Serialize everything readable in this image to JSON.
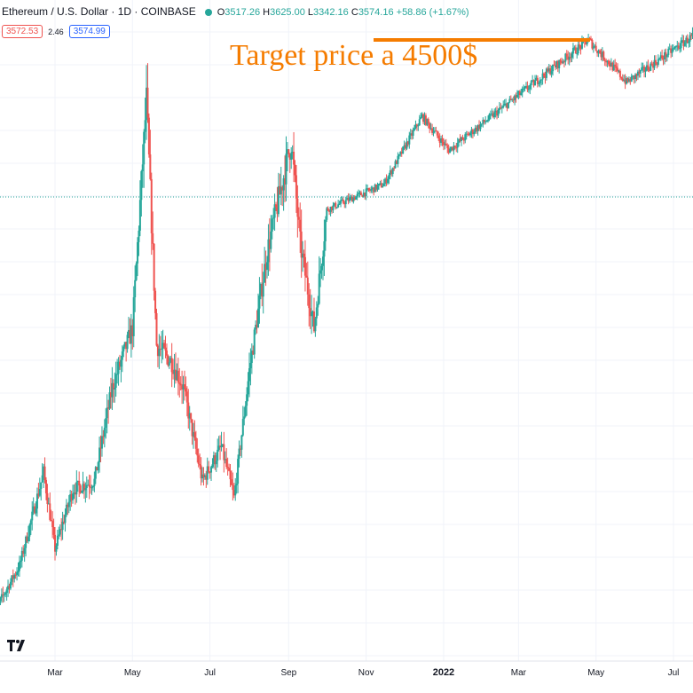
{
  "header": {
    "symbol": "Ethereum / U.S. Dollar · 1D · COINBASE",
    "open_key": "O",
    "open": "3517.26",
    "high_key": "H",
    "high": "3625.00",
    "low_key": "L",
    "low": "3342.16",
    "close_key": "C",
    "close": "3574.16",
    "change": "+58.86 (+1.67%)",
    "bid": "3572.53",
    "spread": "2.46",
    "ask": "3574.99"
  },
  "annotation": "Target price a 4500$",
  "colors": {
    "up": "#26a69a",
    "down": "#ef5350",
    "annotation": "#f57c00",
    "price_line": "#26a69a",
    "grid": "#f0f3fa"
  },
  "icons": [
    "tradingview-logo-icon"
  ],
  "chart_data": {
    "type": "candlestick",
    "title": "Ethereum / U.S. Dollar · 1D · COINBASE",
    "x_ticks": [
      "Mar",
      "May",
      "Jul",
      "Sep",
      "Nov",
      "2022",
      "Mar",
      "May",
      "Jul"
    ],
    "grid": true,
    "last_price": 3574.16,
    "target_price": 4500,
    "annotation": "Target price a 4500$",
    "historical_close_path": [
      {
        "date": "2021-01-10",
        "value": 1100
      },
      {
        "date": "2021-02-01",
        "value": 1400
      },
      {
        "date": "2021-02-20",
        "value": 1950
      },
      {
        "date": "2021-03-01",
        "value": 1500
      },
      {
        "date": "2021-03-15",
        "value": 1850
      },
      {
        "date": "2021-04-01",
        "value": 1900
      },
      {
        "date": "2021-04-15",
        "value": 2450
      },
      {
        "date": "2021-05-01",
        "value": 2800
      },
      {
        "date": "2021-05-12",
        "value": 4150
      },
      {
        "date": "2021-05-20",
        "value": 2700
      },
      {
        "date": "2021-06-01",
        "value": 2600
      },
      {
        "date": "2021-06-10",
        "value": 2450
      },
      {
        "date": "2021-06-25",
        "value": 1900
      },
      {
        "date": "2021-07-10",
        "value": 2100
      },
      {
        "date": "2021-07-20",
        "value": 1800
      },
      {
        "date": "2021-08-01",
        "value": 2550
      },
      {
        "date": "2021-08-15",
        "value": 3250
      },
      {
        "date": "2021-09-03",
        "value": 3900
      },
      {
        "date": "2021-09-10",
        "value": 3300
      },
      {
        "date": "2021-09-21",
        "value": 2800
      },
      {
        "date": "2021-10-01",
        "value": 3500
      }
    ],
    "projection_path": [
      {
        "date": "2021-10-01",
        "value": 3500
      },
      {
        "date": "2021-11-15",
        "value": 3650
      },
      {
        "date": "2021-12-15",
        "value": 4050
      },
      {
        "date": "2022-01-05",
        "value": 3850
      },
      {
        "date": "2022-04-25",
        "value": 4500
      },
      {
        "date": "2022-05-25",
        "value": 4250
      },
      {
        "date": "2022-07-31",
        "value": 4600
      }
    ]
  }
}
